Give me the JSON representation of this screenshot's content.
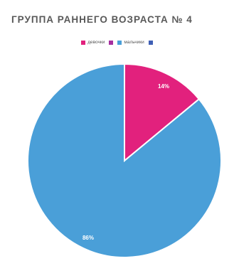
{
  "chart_data": {
    "type": "pie",
    "title": "ГРУППА РАННЕГО ВОЗРАСТА № 4",
    "legend": [
      {
        "label": "девочки",
        "color": "#e2217d"
      },
      {
        "label": "",
        "color": "#a62fa0"
      },
      {
        "label": "мальчики",
        "color": "#4a9fd8"
      },
      {
        "label": "",
        "color": "#3f5fb5"
      }
    ],
    "slices": [
      {
        "label": "14%",
        "value": 14,
        "color": "#e2217d"
      },
      {
        "label": "86%",
        "value": 86,
        "color": "#4a9fd8"
      }
    ],
    "legend_position": "top"
  }
}
